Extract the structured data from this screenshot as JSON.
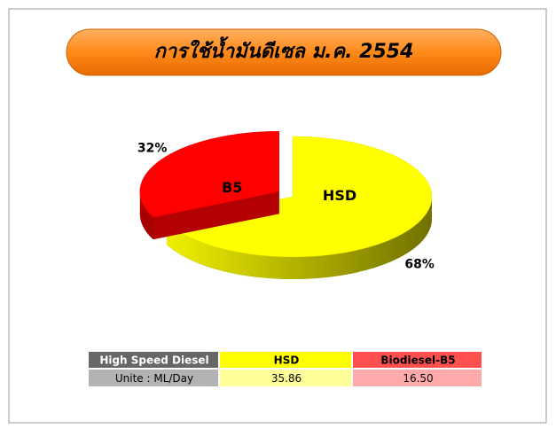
{
  "chart_data": {
    "type": "pie",
    "title": "การใช้น้ำมันดีเซล ม.ค. 2554",
    "categories": [
      "HSD",
      "B5"
    ],
    "values": [
      68,
      32
    ],
    "value_labels": [
      "68%",
      "32%"
    ],
    "colors": [
      "#ffff00",
      "#ff0000"
    ]
  },
  "table": {
    "header": [
      "High Speed Diesel",
      "HSD",
      "Biodiesel-B5"
    ],
    "rows": [
      [
        "Unite : ML/Day",
        "35.86",
        "16.50"
      ]
    ]
  }
}
